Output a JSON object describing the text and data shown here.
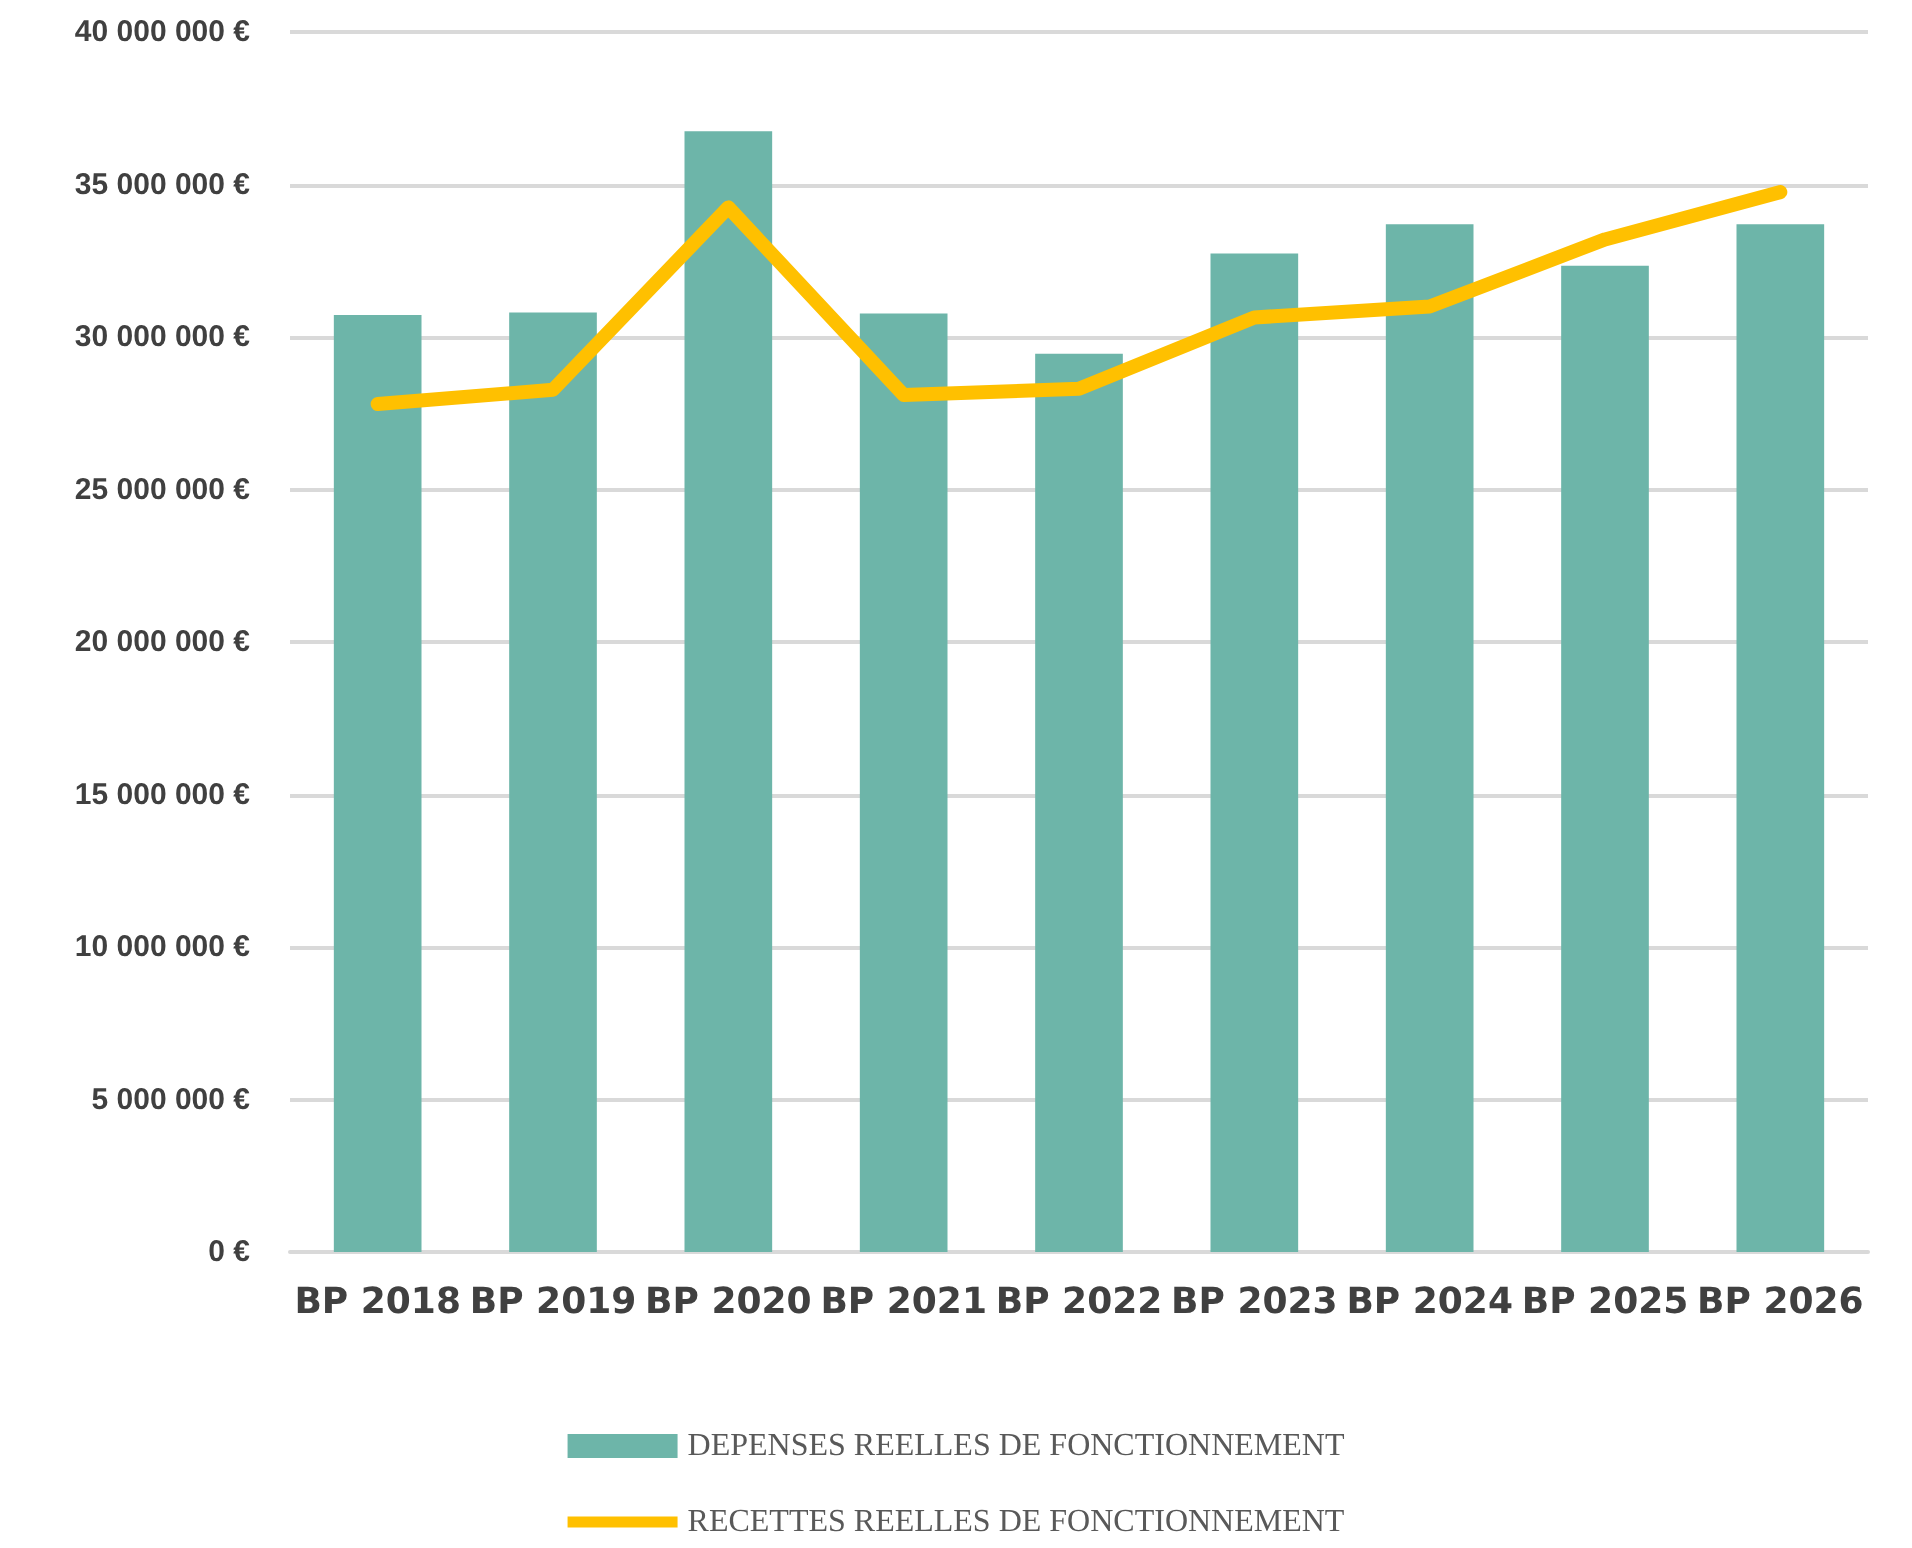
{
  "chart_data": {
    "type": "bar",
    "categories": [
      "BP 2018",
      "BP 2019",
      "BP 2020",
      "BP 2021",
      "BP 2022",
      "BP 2023",
      "BP 2024",
      "BP 2025",
      "BP 2026"
    ],
    "series": [
      {
        "name": "DEPENSES REELLES DE FONCTIONNEMENT",
        "color": "#6db5a9",
        "values": [
          30720000,
          30800000,
          36750000,
          30770000,
          29450000,
          32740000,
          33700000,
          32340000,
          33700000
        ]
      },
      {
        "name": "RECETTES REELLES DE FONCTIONNEMENT",
        "type": "line",
        "color": "#ffc000",
        "values": [
          27800000,
          28270000,
          34250000,
          28100000,
          28300000,
          30640000,
          31000000,
          33200000,
          34750000
        ]
      }
    ],
    "ylim": [
      0,
      40000000
    ],
    "yticks": [
      {
        "value": 0,
        "label": "0 €"
      },
      {
        "value": 5000000,
        "label": "5 000 000 €"
      },
      {
        "value": 10000000,
        "label": "10 000 000 €"
      },
      {
        "value": 15000000,
        "label": "15 000 000 €"
      },
      {
        "value": 20000000,
        "label": "20 000 000 €"
      },
      {
        "value": 25000000,
        "label": "25 000 000 €"
      },
      {
        "value": 30000000,
        "label": "30 000 000 €"
      },
      {
        "value": 35000000,
        "label": "35 000 000 €"
      },
      {
        "value": 40000000,
        "label": "40 000 000 €"
      }
    ],
    "grid": "y",
    "legend": "bottom",
    "line_style": "solid"
  }
}
